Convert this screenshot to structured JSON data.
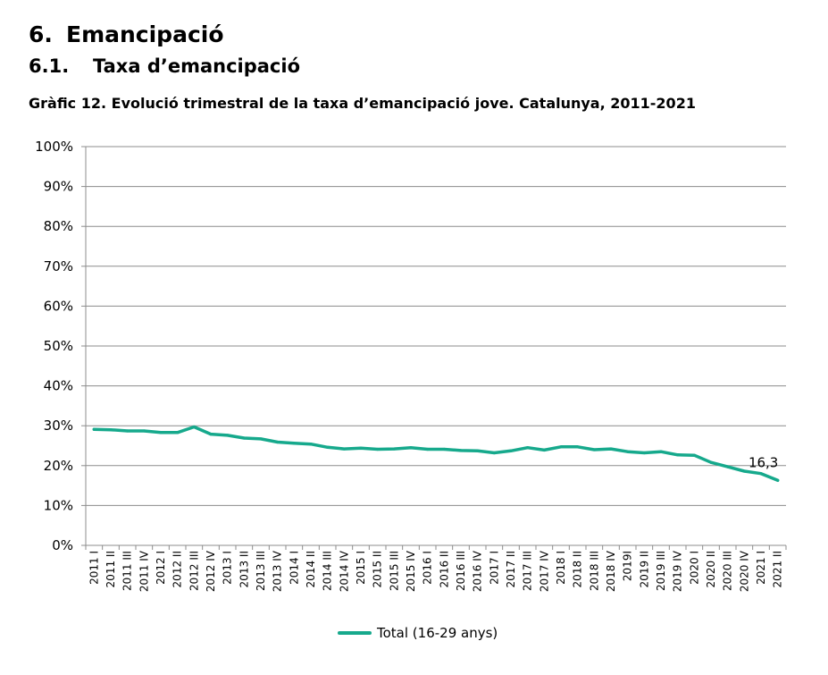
{
  "heading": {
    "number": "6.",
    "title": "Emancipació"
  },
  "subheading": {
    "number": "6.1.",
    "title": "Taxa d’emancipació"
  },
  "caption": "Gràfic 12. Evolució trimestral de la taxa d’emancipació jove. Catalunya, 2011-2021",
  "chart_data": {
    "type": "line",
    "categories": [
      "2011 I",
      "2011 II",
      "2011 III",
      "2011 IV",
      "2012 I",
      "2012 II",
      "2012 III",
      "2012 IV",
      "2013 I",
      "2013 II",
      "2013 III",
      "2013 IV",
      "2014 I",
      "2014 II",
      "2014 III",
      "2014 IV",
      "2015 I",
      "2015 II",
      "2015 III",
      "2015 IV",
      "2016 I",
      "2016 II",
      "2016 III",
      "2016 IV",
      "2017 I",
      "2017 II",
      "2017 III",
      "2017 IV",
      "2018 I",
      "2018 II",
      "2018 III",
      "2018 IV",
      "2019I",
      "2019 II",
      "2019 III",
      "2019 IV",
      "2020 I",
      "2020 II",
      "2020 III",
      "2020 IV",
      "2021 I",
      "2021 II"
    ],
    "series": [
      {
        "name": "Total (16-29 anys)",
        "color": "#16a98c",
        "values": [
          29.1,
          29.0,
          28.7,
          28.7,
          28.3,
          28.3,
          29.7,
          27.9,
          27.6,
          26.9,
          26.7,
          25.9,
          25.6,
          25.4,
          24.6,
          24.2,
          24.4,
          24.1,
          24.2,
          24.5,
          24.1,
          24.1,
          23.8,
          23.7,
          23.2,
          23.7,
          24.5,
          23.9,
          24.7,
          24.7,
          24.0,
          24.2,
          23.5,
          23.2,
          23.5,
          22.7,
          22.6,
          20.8,
          19.7,
          18.6,
          18.0,
          16.3
        ]
      }
    ],
    "ylim": [
      0,
      100
    ],
    "yticks": [
      "0%",
      "10%",
      "20%",
      "30%",
      "40%",
      "50%",
      "60%",
      "70%",
      "80%",
      "90%",
      "100%"
    ],
    "grid": true,
    "legend_position": "bottom",
    "annotation": "16,3"
  }
}
